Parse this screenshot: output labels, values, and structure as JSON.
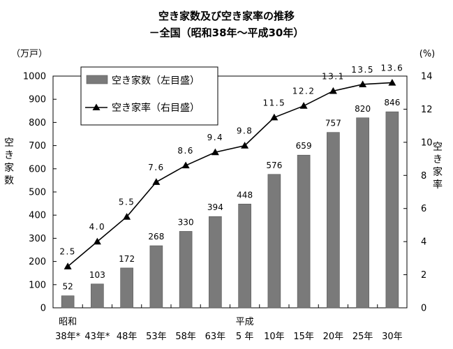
{
  "title_line1": "空き家数及び空き家率の推移",
  "title_line2": "－全国（昭和38年～平成30年）",
  "left_unit": "（万戸）",
  "right_unit": "(%)",
  "left_axis_title": "空き家数",
  "right_axis_title": "空き家率",
  "chart_data": {
    "type": "bar+line",
    "title": "空き家数及び空き家率の推移 －全国（昭和38年～平成30年）",
    "categories": [
      "昭和 38年*",
      "43年*",
      "48年",
      "53年",
      "58年",
      "63年",
      "平成 5年",
      "10年",
      "15年",
      "20年",
      "25年",
      "30年"
    ],
    "x_tick_lines": [
      [
        "昭和",
        "38年*"
      ],
      [
        "",
        "43年*"
      ],
      [
        "",
        "48年"
      ],
      [
        "",
        "53年"
      ],
      [
        "",
        "58年"
      ],
      [
        "",
        "63年"
      ],
      [
        "平成",
        "5 年"
      ],
      [
        "",
        "10年"
      ],
      [
        "",
        "15年"
      ],
      [
        "",
        "20年"
      ],
      [
        "",
        "25年"
      ],
      [
        "",
        "30年"
      ]
    ],
    "series": [
      {
        "name": "空き家数（左目盛）",
        "type": "bar",
        "axis": "left",
        "color": "#7a7a7a",
        "values": [
          52,
          103,
          172,
          268,
          330,
          394,
          448,
          576,
          659,
          757,
          820,
          846
        ],
        "labels": [
          "52",
          "103",
          "172",
          "268",
          "330",
          "394",
          "448",
          "576",
          "659",
          "757",
          "820",
          "846"
        ]
      },
      {
        "name": "空き家率（右目盛）",
        "type": "line",
        "axis": "right",
        "color": "#000000",
        "values": [
          2.5,
          4.0,
          5.5,
          7.6,
          8.6,
          9.4,
          9.8,
          11.5,
          12.2,
          13.1,
          13.5,
          13.6
        ],
        "labels": [
          "2.5",
          "4.0",
          "5.5",
          "7.6",
          "8.6",
          "9.4",
          "9.8",
          "11.5",
          "12.2",
          "13.1",
          "13.5",
          "13.6"
        ]
      }
    ],
    "ylabel_left": "空き家数",
    "ylabel_right": "空き家率",
    "ylim_left": [
      0,
      1000
    ],
    "ylim_right": [
      0,
      14
    ],
    "yticks_left": [
      "0",
      "100",
      "200",
      "300",
      "400",
      "500",
      "600",
      "700",
      "800",
      "900",
      "1000"
    ],
    "yticks_right": [
      "0",
      "2",
      "4",
      "6",
      "8",
      "10",
      "12",
      "14"
    ],
    "legend": [
      "空き家数（左目盛）",
      "空き家率（右目盛）"
    ],
    "legend_position": "top-left",
    "grid": false
  }
}
